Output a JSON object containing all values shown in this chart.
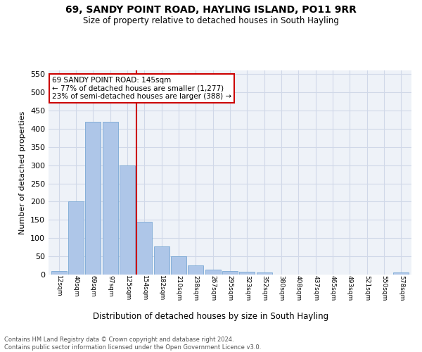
{
  "title1": "69, SANDY POINT ROAD, HAYLING ISLAND, PO11 9RR",
  "title2": "Size of property relative to detached houses in South Hayling",
  "xlabel": "Distribution of detached houses by size in South Hayling",
  "ylabel": "Number of detached properties",
  "footer1": "Contains HM Land Registry data © Crown copyright and database right 2024.",
  "footer2": "Contains public sector information licensed under the Open Government Licence v3.0.",
  "bar_labels": [
    "12sqm",
    "40sqm",
    "69sqm",
    "97sqm",
    "125sqm",
    "154sqm",
    "182sqm",
    "210sqm",
    "238sqm",
    "267sqm",
    "295sqm",
    "323sqm",
    "352sqm",
    "380sqm",
    "408sqm",
    "437sqm",
    "465sqm",
    "493sqm",
    "521sqm",
    "550sqm",
    "578sqm"
  ],
  "bar_values": [
    10,
    200,
    420,
    420,
    300,
    145,
    78,
    50,
    25,
    13,
    10,
    7,
    5,
    0,
    0,
    0,
    0,
    0,
    0,
    0,
    5
  ],
  "bar_color": "#aec6e8",
  "bar_edge_color": "#7aa8d4",
  "vline_color": "#cc0000",
  "annotation_text": "69 SANDY POINT ROAD: 145sqm\n← 77% of detached houses are smaller (1,277)\n23% of semi-detached houses are larger (388) →",
  "annotation_box_color": "#ffffff",
  "annotation_box_edge": "#cc0000",
  "ylim": [
    0,
    560
  ],
  "yticks": [
    0,
    50,
    100,
    150,
    200,
    250,
    300,
    350,
    400,
    450,
    500,
    550
  ],
  "grid_color": "#d0d8e8",
  "bg_color": "#eef2f8"
}
